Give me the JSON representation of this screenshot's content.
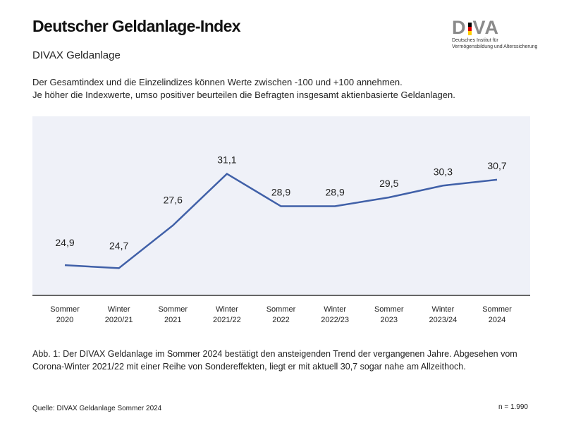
{
  "header": {
    "title": "Deutscher Geldanlage-Index",
    "subtitle": "DIVAX Geldanlage",
    "description": [
      "Der Gesamtindex und die Einzelindizes können Werte zwischen -100 und +100 annehmen.",
      "Je höher die Indexwerte, umso positiver beurteilen die Befragten insgesamt aktienbasierte Geldanlagen."
    ]
  },
  "logo": {
    "text": "DIVA",
    "subtitle_lines": [
      "Deutsches Institut für",
      "Vermögensbildung und Alterssicherung"
    ],
    "flag_colors": [
      "#000000",
      "#dd0000",
      "#ffce00"
    ]
  },
  "chart_data": {
    "type": "line",
    "categories": [
      [
        "Sommer",
        "2020"
      ],
      [
        "Winter",
        "2020/21"
      ],
      [
        "Sommer",
        "2021"
      ],
      [
        "Winter",
        "2021/22"
      ],
      [
        "Sommer",
        "2022"
      ],
      [
        "Winter",
        "2022/23"
      ],
      [
        "Sommer",
        "2023"
      ],
      [
        "Winter",
        "2023/24"
      ],
      [
        "Sommer",
        "2024"
      ]
    ],
    "values": [
      24.9,
      24.7,
      27.6,
      31.1,
      28.9,
      28.9,
      29.5,
      30.3,
      30.7
    ],
    "data_labels": [
      "24,9",
      "24,7",
      "27,6",
      "31,1",
      "28,9",
      "28,9",
      "29,5",
      "30,3",
      "30,7"
    ],
    "ylim": [
      22.9,
      35.0
    ],
    "grid": false,
    "line_color": "#4060a8",
    "background_color": "#eff1f8"
  },
  "footer": {
    "caption": "Abb. 1: Der DIVAX Geldanlage im Sommer 2024 bestätigt den ansteigenden Trend der vergangenen Jahre. Abgesehen vom Corona-Winter 2021/22 mit einer Reihe von Sondereffekten, liegt er mit aktuell 30,7 sogar nahe am Allzeithoch.",
    "source": "Quelle: DIVAX Geldanlage Sommer 2024",
    "n": "n =  1.990"
  }
}
